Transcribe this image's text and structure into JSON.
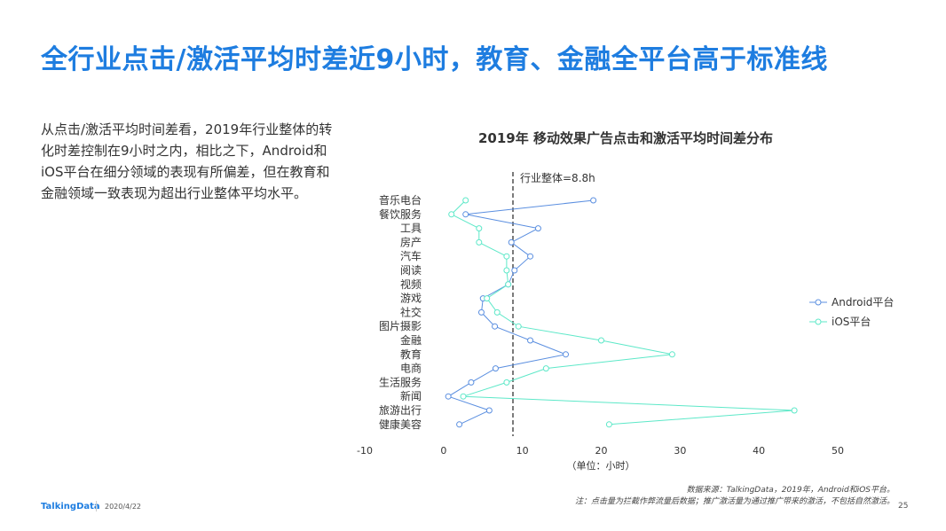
{
  "title": "全行业点击/激活平均时差近9小时，教育、金融全平台高于标准线",
  "summary": "从点击/激活平均时间差看，2019年行业整体的转化时差控制在9小时之内，相比之下，Android和iOS平台在细分领域的表现有所偏差，但在教育和金融领域一致表现为超出行业整体平均水平。",
  "chart_data": {
    "type": "line",
    "title": "2019年  移动效果广告点击和激活平均时间差分布",
    "xlabel": "（单位：小时）",
    "xlim": [
      -10,
      50
    ],
    "xticks": [
      "-10",
      "0",
      "10",
      "20",
      "30",
      "40",
      "50"
    ],
    "categories": [
      "音乐电台",
      "餐饮服务",
      "工具",
      "房产",
      "汽车",
      "阅读",
      "视频",
      "游戏",
      "社交",
      "图片摄影",
      "金融",
      "教育",
      "电商",
      "生活服务",
      "新闻",
      "旅游出行",
      "健康美容"
    ],
    "reference": {
      "value": 8.8,
      "label": "行业整体=8.8h"
    },
    "legend_position": "right",
    "series": [
      {
        "name": "Android平台",
        "color": "#5b8fe0",
        "values": [
          19,
          2.8,
          12,
          8.6,
          11,
          9,
          8.2,
          5,
          4.8,
          6.5,
          11,
          15.5,
          6.6,
          3.5,
          0.6,
          5.8,
          2
        ]
      },
      {
        "name": "iOS平台",
        "color": "#5de8c8",
        "values": [
          2.8,
          1,
          4.5,
          4.5,
          8,
          8,
          8.2,
          5.5,
          6.8,
          9.5,
          20,
          29,
          13,
          8,
          2.5,
          44.5,
          21
        ]
      }
    ]
  },
  "footer": {
    "source": "数据来源：TalkingData，2019年，Android和iOS平台。",
    "note": "注：点击量为拦截作弊流量后数据；推广激活量为通过推广带来的激活，不包括自然激活。",
    "logo": "TalkingData",
    "date": "2020/4/22",
    "page": "25"
  }
}
